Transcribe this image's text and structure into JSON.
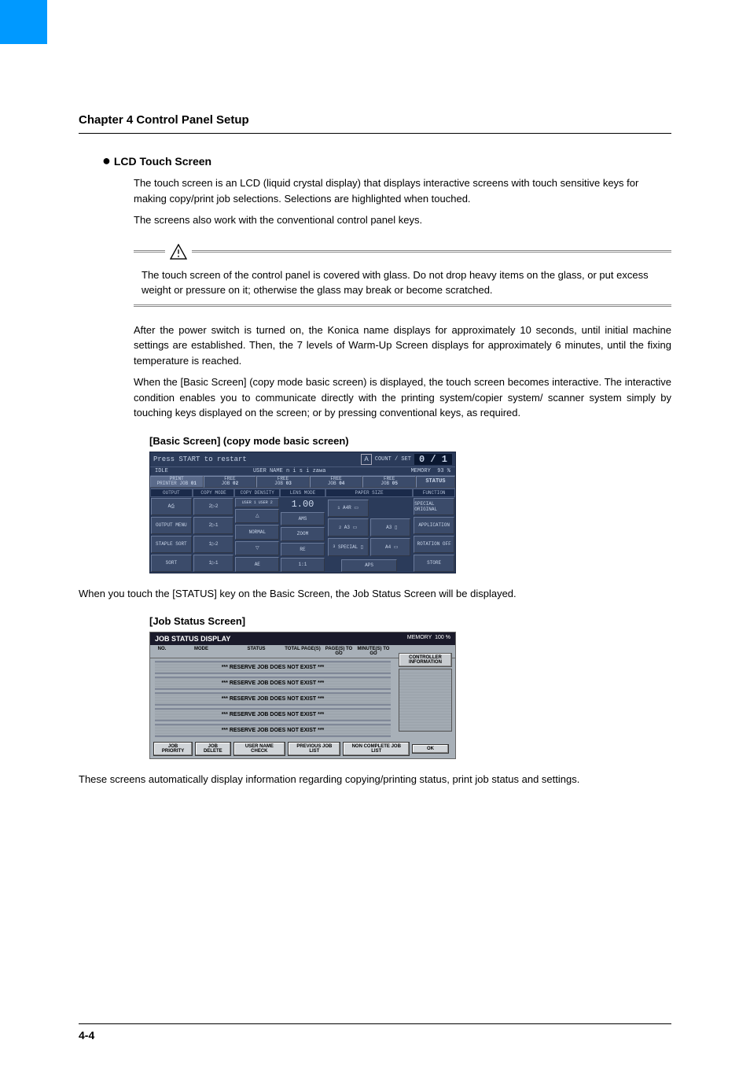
{
  "chapter_title": "Chapter 4 Control Panel Setup",
  "section_title": "LCD Touch Screen",
  "p1": "The touch screen is an LCD (liquid crystal display) that displays interactive screens with touch sensitive keys for making copy/print job selections. Selections are highlighted when touched.",
  "p2": "The screens also work with the conventional control panel keys.",
  "warning": "The touch screen of the control panel is covered with glass. Do not drop heavy items on the glass, or put excess weight or pressure on it; otherwise the glass may break or become scratched.",
  "p3": "After the power switch is turned on, the Konica name displays for approximately 10 seconds, until initial machine settings are established. Then, the 7 levels of Warm-Up Screen displays for approximately 6 minutes, until the fixing temperature is reached.",
  "p4": "When the [Basic Screen] (copy mode basic screen) is displayed, the touch screen becomes interactive. The interactive condition enables you to communicate directly with the printing system/copier system/ scanner system simply by touching keys displayed on the screen; or by pressing conventional keys, as required.",
  "caption1": "[Basic Screen] (copy mode basic screen)",
  "basic_screen": {
    "message": "Press START to restart",
    "count_label": "COUNT / SET",
    "count_value": "0 / 1",
    "idle": "IDLE",
    "user_label": "USER NAME",
    "user_name": "n i s i zawa",
    "memory_label": "MEMORY",
    "memory_value": "93 %",
    "jobs": [
      {
        "state": "PRINT",
        "sub": "PRINTER JOB",
        "num": "01"
      },
      {
        "state": "FREE",
        "sub": "JOB",
        "num": "02"
      },
      {
        "state": "FREE",
        "sub": "JOB",
        "num": "03"
      },
      {
        "state": "FREE",
        "sub": "JOB",
        "num": "04"
      },
      {
        "state": "FREE",
        "sub": "JOB",
        "num": "05"
      }
    ],
    "status_btn": "STATUS",
    "headers": [
      "OUTPUT",
      "COPY MODE",
      "COPY DENSITY",
      "LENS MODE",
      "PAPER SIZE",
      "FUNCTION"
    ],
    "output_col": [
      "",
      "OUTPUT MENU",
      "STAPLE SORT",
      "SORT"
    ],
    "copymode_col": [
      "2▷2",
      "2▷1",
      "1▷2",
      "1▷1"
    ],
    "density_top": "USER 1 USER 2",
    "density_mid": "NORMAL",
    "density_bot": "AE",
    "lens_value": "1.00",
    "lens_btns": [
      "AMS",
      "ZOOM",
      "RE",
      "1:1"
    ],
    "paper_items": [
      "A4R",
      "A3",
      "A3",
      "SPECIAL",
      "A4"
    ],
    "paper_aps": "APS",
    "func_col": [
      "SPECIAL ORIGINAL",
      "APPLICATION",
      "ROTATION OFF",
      "STORE"
    ],
    "colors": {
      "bg": "#2b3b5a",
      "text": "#c8d4e8",
      "dark": "#0a1730",
      "button": "#3b4b6a"
    }
  },
  "p5": "When you touch the [STATUS] key on the Basic Screen, the Job Status Screen will be displayed.",
  "caption2": "[Job Status Screen]",
  "job_status": {
    "title": "JOB STATUS DISPLAY",
    "mem_label": "MEMORY",
    "mem_value": "100 %",
    "cols": [
      "NO.",
      "MODE",
      "STATUS",
      "TOTAL PAGE(S)",
      "PAGE(S) TO GO",
      "MINUTE(S) TO GO"
    ],
    "right_btn": "CONTROLLER INFORMATION",
    "row_text": "*** RESERVE JOB DOES NOT EXIST ***",
    "row_count": 5,
    "bottom_btns": [
      "JOB PRIORITY",
      "JOB DELETE",
      "USER NAME CHECK",
      "PREVIOUS JOB LIST",
      "NON COMPLETE JOB LIST"
    ],
    "ok": "OK",
    "colors": {
      "bg": "#a8b0b8",
      "title_bg": "#1a1a2a",
      "btn_bg": "#d0d4d8"
    }
  },
  "p6": "These screens automatically display information regarding copying/printing status, print job status and settings.",
  "page_num": "4-4"
}
